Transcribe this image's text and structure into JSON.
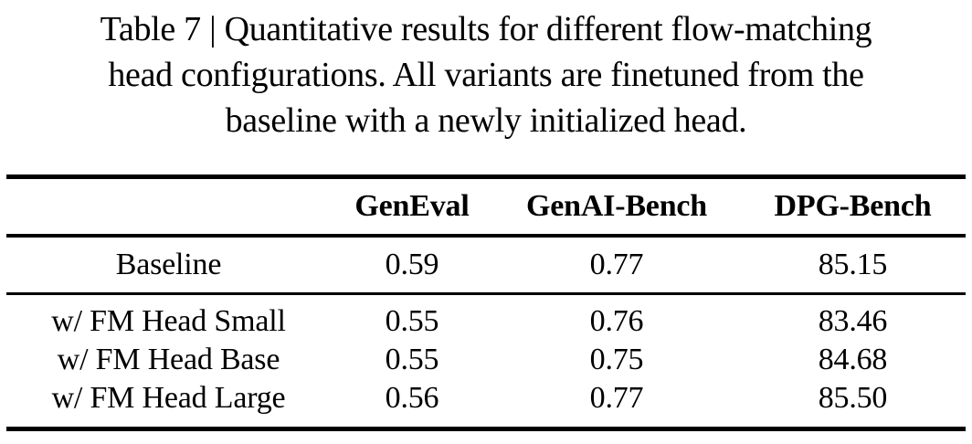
{
  "caption": {
    "lines": [
      "Table 7 | Quantitative results for different flow-matching",
      "head configurations. All variants are finetuned from the",
      "baseline with a newly initialized head."
    ]
  },
  "table": {
    "columns": [
      "GenEval",
      "GenAI-Bench",
      "DPG-Bench"
    ],
    "rows": [
      {
        "label": "Baseline",
        "values": [
          "0.59",
          "0.77",
          "85.15"
        ]
      },
      {
        "label": "w/ FM Head Small",
        "values": [
          "0.55",
          "0.76",
          "83.46"
        ]
      },
      {
        "label": "w/ FM Head Base",
        "values": [
          "0.55",
          "0.75",
          "84.68"
        ]
      },
      {
        "label": "w/ FM Head Large",
        "values": [
          "0.56",
          "0.77",
          "85.50"
        ]
      }
    ],
    "text_color": "#000000",
    "background_color": "#ffffff"
  }
}
